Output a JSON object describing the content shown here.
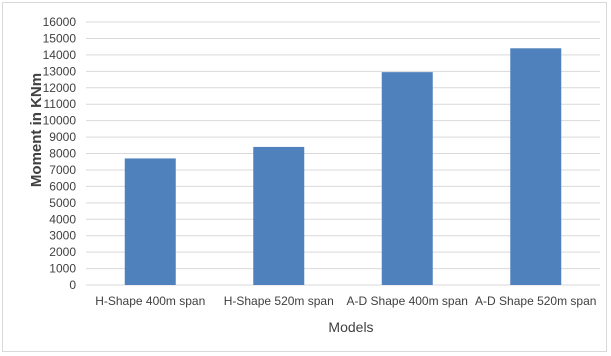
{
  "chart_data": {
    "type": "bar",
    "title": "",
    "xlabel": "Models",
    "ylabel": "Moment in KNm",
    "categories": [
      "H-Shape 400m span",
      "H-Shape 520m span",
      "A-D Shape 400m span",
      "A-D Shape 520m span"
    ],
    "values": [
      7700,
      8400,
      12950,
      14400
    ],
    "ylim": [
      0,
      16000
    ],
    "yticks": [
      0,
      1000,
      2000,
      3000,
      4000,
      5000,
      6000,
      7000,
      8000,
      9000,
      10000,
      11000,
      12000,
      13000,
      14000,
      15000,
      16000
    ],
    "grid": true,
    "legend": "none",
    "colors": {
      "bar": "#4f81bd",
      "grid": "#d9d9d9",
      "text": "#404040"
    }
  }
}
